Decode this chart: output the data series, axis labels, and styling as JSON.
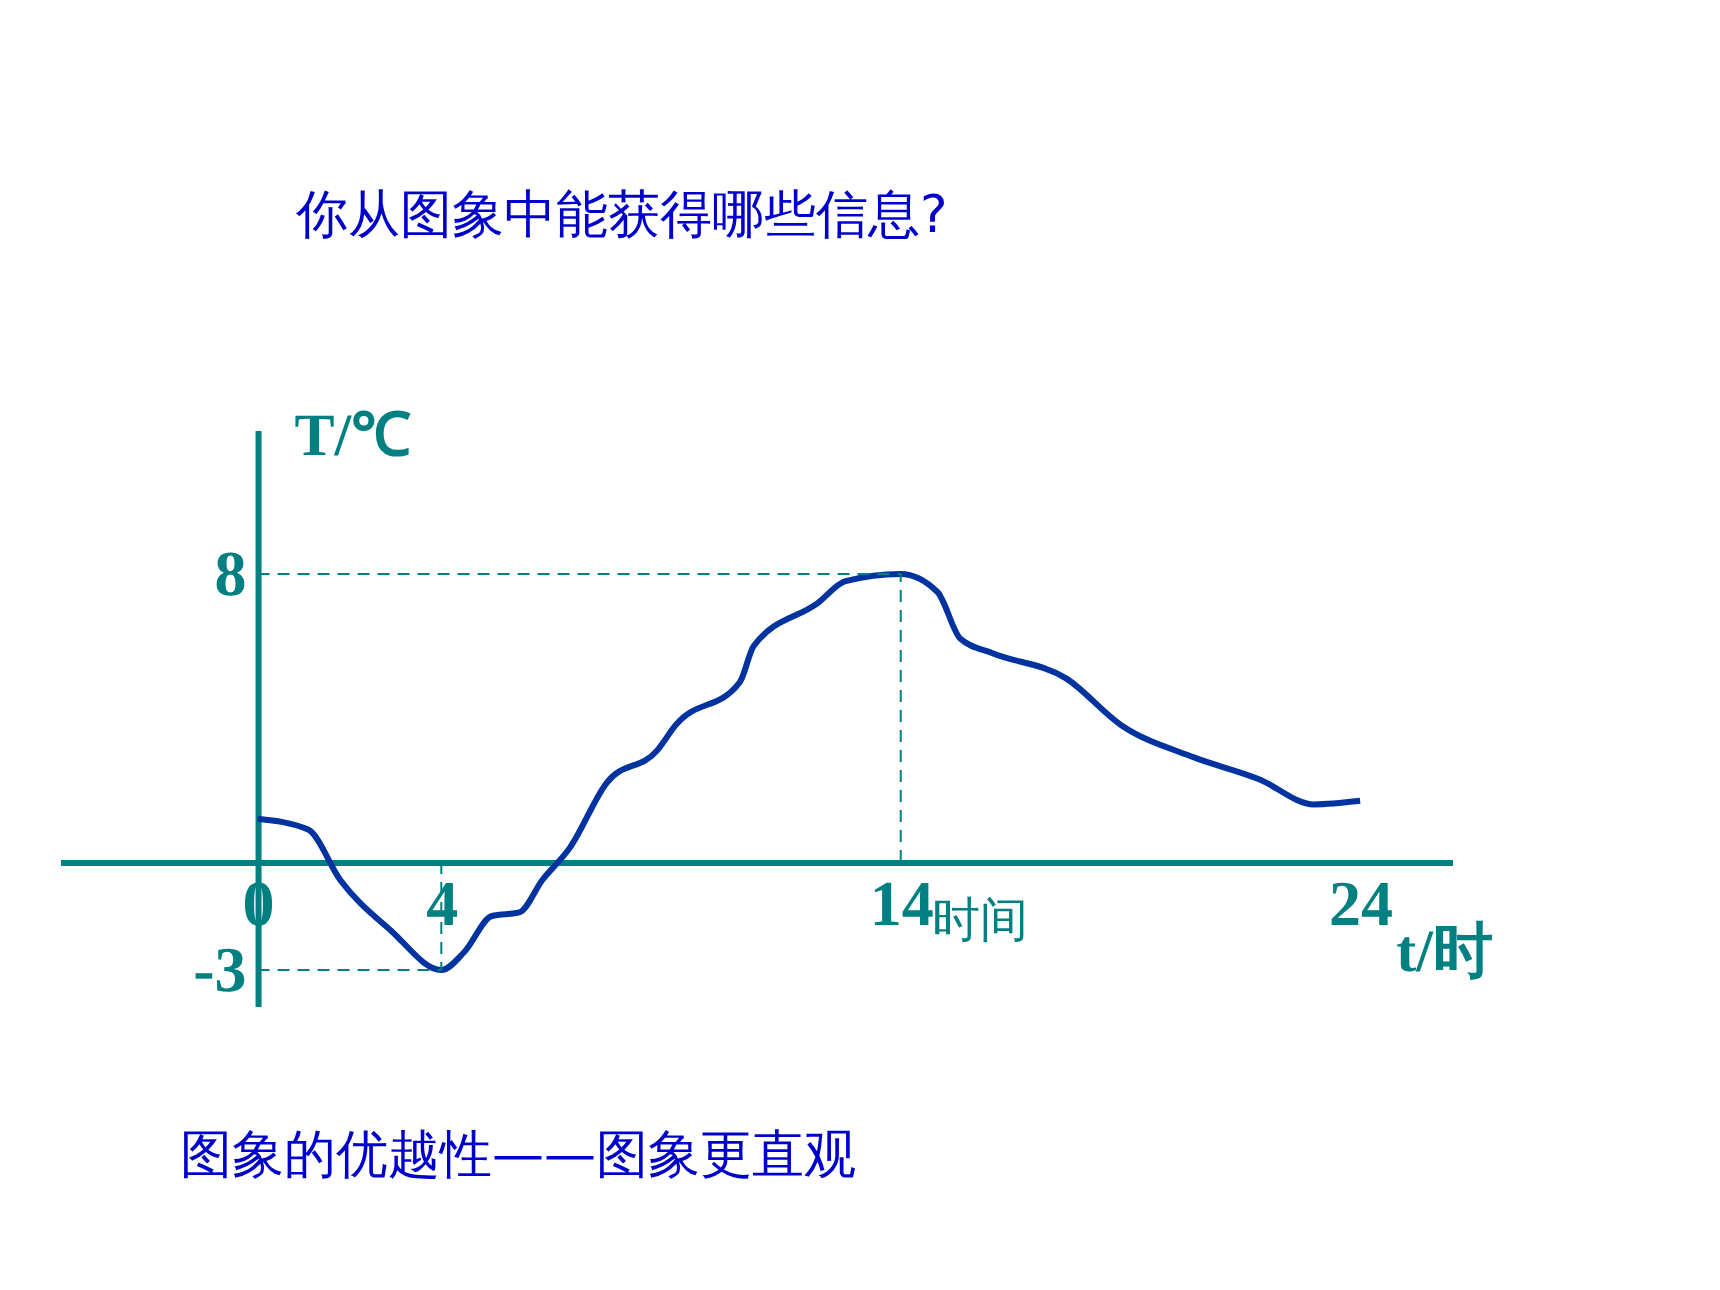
{
  "chart_data": {
    "type": "line",
    "title": "你从图象中能获得哪些信息?",
    "xlabel": "t/时",
    "ylabel": "T/℃",
    "annotations": [
      "时间",
      "图象的优越性——图象更直观"
    ],
    "xlim": [
      -4.3,
      26
    ],
    "ylim": [
      -4,
      12
    ],
    "xticks": [
      0,
      4,
      14,
      24
    ],
    "yticks": [
      -3,
      8
    ],
    "grid": false,
    "line_style": "solid",
    "marker": "none",
    "ref_lines": [
      {
        "axis": "y",
        "value": 8,
        "color": "#008080",
        "line_style": "dashed"
      },
      {
        "axis": "x",
        "value": 14,
        "color": "#008080",
        "line_style": "dashed"
      },
      {
        "axis": "x",
        "value": 4,
        "color": "#008080",
        "line_style": "dashed"
      },
      {
        "axis": "y",
        "value": -3,
        "color": "#008080",
        "line_style": "dashed"
      }
    ],
    "series": [
      {
        "color": "#0033a0",
        "x": [
          0,
          1.1,
          1.8,
          2.9,
          4,
          4.5,
          5.1,
          5.7,
          6.2,
          6.8,
          7.6,
          8.7,
          9.1,
          10.5,
          10.8,
          12.2,
          12.8,
          14,
          14.8,
          15.3,
          16,
          17.6,
          18.8,
          20.4,
          21.8,
          23,
          24
        ],
        "values": [
          1.2,
          0.9,
          -0.5,
          -1.9,
          -3,
          -2.5,
          -1.5,
          -1.4,
          -0.5,
          0.4,
          2.2,
          3.1,
          3.8,
          5,
          6,
          7.2,
          7.8,
          8,
          7.5,
          6.2,
          5.8,
          5.1,
          3.8,
          2.9,
          2.3,
          1.6,
          1.7
        ]
      }
    ]
  }
}
